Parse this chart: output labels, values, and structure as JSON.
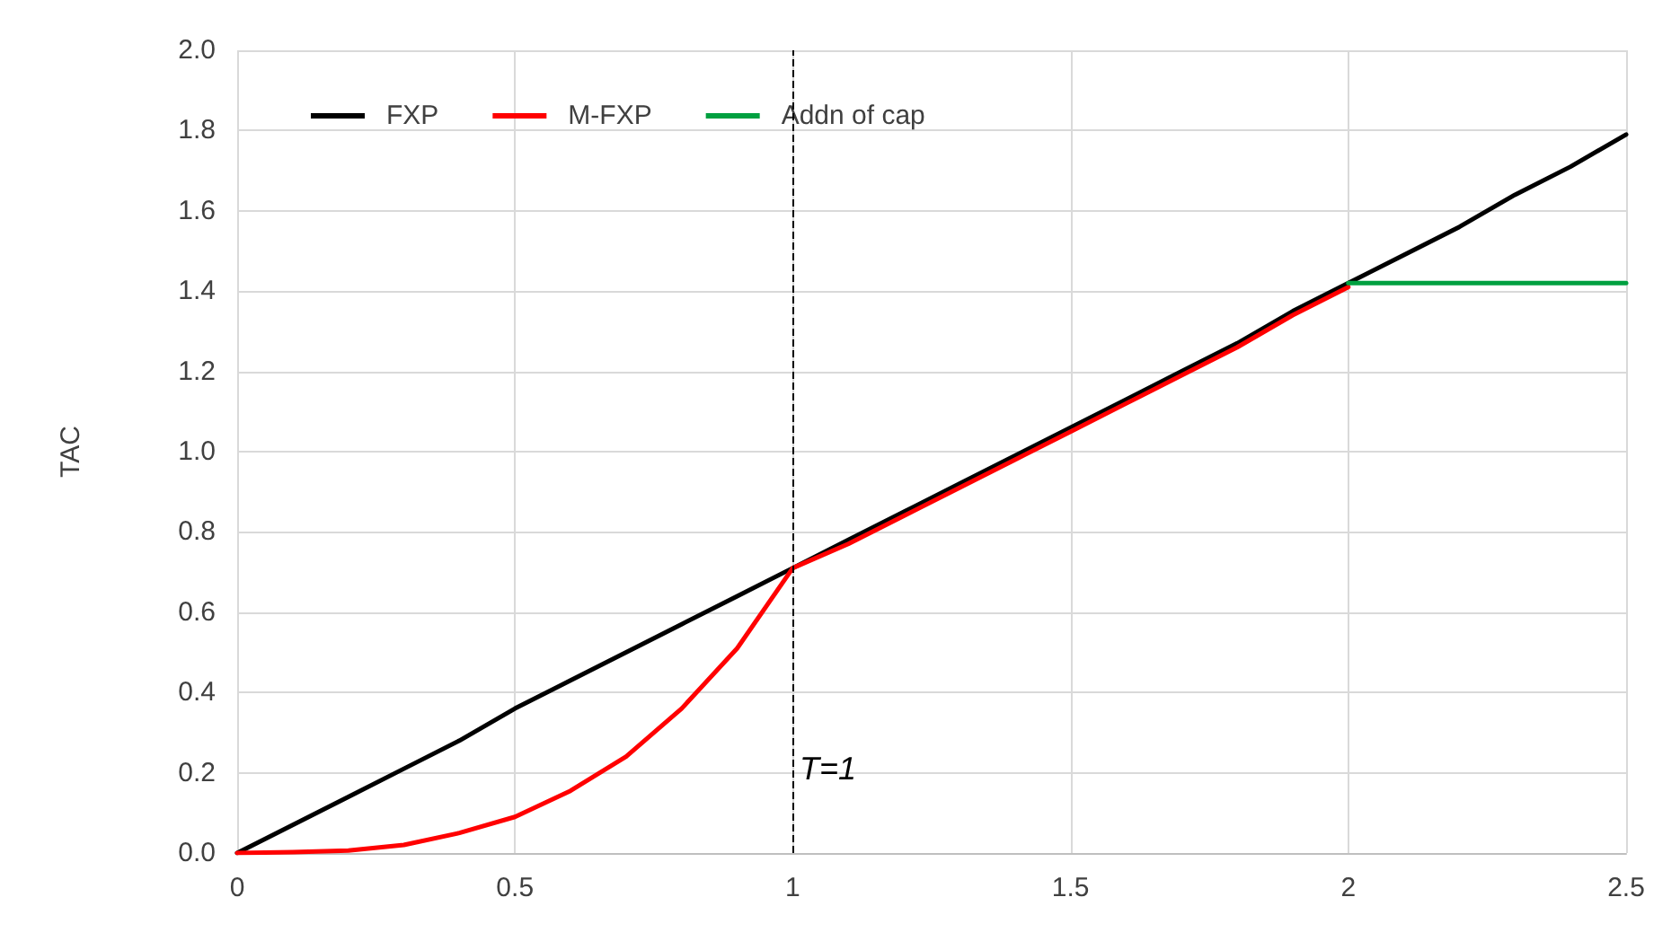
{
  "chart_data": {
    "type": "line",
    "ylabel": "TAC",
    "xlim": [
      0,
      2.5
    ],
    "ylim": [
      0,
      2.0
    ],
    "xticks": [
      0,
      0.5,
      1,
      1.5,
      2,
      2.5
    ],
    "yticks": [
      {
        "value": 0,
        "label": "0.0"
      },
      {
        "value": 0.2,
        "label": "0.2"
      },
      {
        "value": 0.4,
        "label": "0.4"
      },
      {
        "value": 0.6,
        "label": "0.6"
      },
      {
        "value": 0.8,
        "label": "0.8"
      },
      {
        "value": 1.0,
        "label": "1.0"
      },
      {
        "value": 1.2,
        "label": "1.2"
      },
      {
        "value": 1.4,
        "label": "1.4"
      },
      {
        "value": 1.6,
        "label": "1.6"
      },
      {
        "value": 1.8,
        "label": "1.8"
      },
      {
        "value": 2.0,
        "label": "2.0"
      }
    ],
    "grid": true,
    "legend": "top left",
    "marker": "none",
    "line_style": "solid",
    "series": [
      {
        "name": "FXP",
        "color": "#000000",
        "x": [
          0,
          0.1,
          0.2,
          0.3,
          0.4,
          0.5,
          0.6,
          0.7,
          0.8,
          0.9,
          1.0,
          1.1,
          1.2,
          1.3,
          1.4,
          1.5,
          1.6,
          1.7,
          1.8,
          1.9,
          2.0,
          2.1,
          2.2,
          2.3,
          2.4,
          2.5
        ],
        "values": [
          0,
          0.07,
          0.14,
          0.21,
          0.28,
          0.36,
          0.43,
          0.5,
          0.57,
          0.64,
          0.71,
          0.78,
          0.85,
          0.92,
          0.99,
          1.06,
          1.13,
          1.2,
          1.27,
          1.35,
          1.42,
          1.49,
          1.56,
          1.64,
          1.71,
          1.79
        ]
      },
      {
        "name": "M-FXP",
        "color": "#ff0000",
        "x": [
          0,
          0.1,
          0.2,
          0.3,
          0.4,
          0.5,
          0.6,
          0.7,
          0.8,
          0.9,
          1.0,
          1.1,
          1.2,
          1.3,
          1.4,
          1.5,
          1.6,
          1.7,
          1.8,
          1.9,
          2.0
        ],
        "values": [
          0,
          0.002,
          0.006,
          0.02,
          0.05,
          0.09,
          0.155,
          0.24,
          0.36,
          0.51,
          0.71,
          0.77,
          0.84,
          0.91,
          0.98,
          1.05,
          1.12,
          1.19,
          1.26,
          1.34,
          1.41
        ]
      },
      {
        "name": "Addn of cap",
        "color": "#00a040",
        "x": [
          2.0,
          2.5
        ],
        "values": [
          1.42,
          1.42
        ]
      }
    ],
    "ref_lines": [
      {
        "axis": "x",
        "value": 1,
        "color": "#000000",
        "line_style": "dashed"
      }
    ],
    "annotations": [
      "T=1"
    ]
  }
}
